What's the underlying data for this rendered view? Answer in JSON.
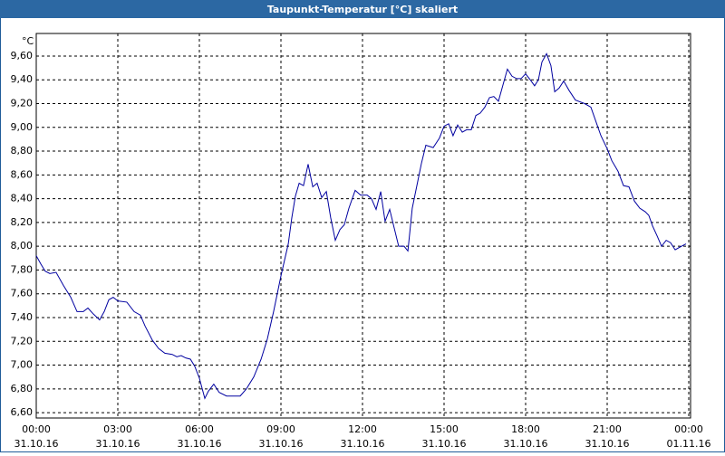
{
  "chart_data": {
    "type": "line",
    "title": "Taupunkt-Temperatur [°C] skaliert",
    "y_label": "°C",
    "x": [
      0,
      0.17,
      0.33,
      0.5,
      0.73,
      1,
      1.27,
      1.5,
      1.73,
      1.9,
      2.1,
      2.33,
      2.5,
      2.67,
      2.83,
      3,
      3.33,
      3.6,
      3.83,
      4,
      4.27,
      4.5,
      4.73,
      5,
      5.17,
      5.33,
      5.5,
      5.67,
      5.83,
      6,
      6.2,
      6.33,
      6.53,
      6.73,
      7,
      7.27,
      7.5,
      7.73,
      8,
      8.27,
      8.5,
      8.73,
      9,
      9.27,
      9.4,
      9.53,
      9.67,
      9.83,
      10,
      10.17,
      10.33,
      10.5,
      10.67,
      10.83,
      11,
      11.17,
      11.33,
      11.5,
      11.73,
      11.93,
      12.17,
      12.33,
      12.5,
      12.67,
      12.83,
      13,
      13.17,
      13.33,
      13.53,
      13.67,
      13.83,
      14,
      14.17,
      14.33,
      14.6,
      14.83,
      15,
      15.17,
      15.33,
      15.5,
      15.67,
      15.83,
      16,
      16.17,
      16.33,
      16.5,
      16.67,
      16.83,
      17,
      17.17,
      17.33,
      17.5,
      17.67,
      17.83,
      18,
      18.17,
      18.33,
      18.47,
      18.6,
      18.77,
      18.93,
      19.07,
      19.23,
      19.4,
      19.6,
      19.83,
      20.17,
      20.4,
      20.6,
      20.77,
      21,
      21.17,
      21.4,
      21.6,
      21.8,
      22,
      22.2,
      22.4,
      22.53,
      22.67,
      22.83,
      23,
      23.17,
      23.33,
      23.5,
      23.73,
      23.9
    ],
    "series": [
      {
        "name": "Taupunkt-Temperatur",
        "color": "#0000a0",
        "values": [
          7.92,
          7.85,
          7.79,
          7.77,
          7.78,
          7.67,
          7.57,
          7.45,
          7.45,
          7.48,
          7.43,
          7.38,
          7.45,
          7.55,
          7.57,
          7.54,
          7.53,
          7.45,
          7.42,
          7.33,
          7.21,
          7.14,
          7.1,
          7.09,
          7.07,
          7.08,
          7.06,
          7.05,
          6.99,
          6.89,
          6.72,
          6.78,
          6.84,
          6.77,
          6.74,
          6.74,
          6.74,
          6.8,
          6.9,
          7.05,
          7.22,
          7.45,
          7.75,
          8.02,
          8.24,
          8.42,
          8.53,
          8.51,
          8.69,
          8.5,
          8.53,
          8.41,
          8.46,
          8.24,
          8.05,
          8.14,
          8.18,
          8.32,
          8.47,
          8.43,
          8.43,
          8.4,
          8.31,
          8.46,
          8.21,
          8.31,
          8.15,
          8.0,
          8.0,
          7.96,
          8.32,
          8.51,
          8.7,
          8.85,
          8.83,
          8.91,
          9.01,
          9.03,
          8.93,
          9.02,
          8.96,
          8.98,
          8.98,
          9.1,
          9.12,
          9.17,
          9.25,
          9.26,
          9.22,
          9.36,
          9.49,
          9.43,
          9.41,
          9.41,
          9.45,
          9.4,
          9.35,
          9.4,
          9.55,
          9.62,
          9.52,
          9.3,
          9.33,
          9.39,
          9.31,
          9.23,
          9.2,
          9.17,
          9.04,
          8.93,
          8.82,
          8.72,
          8.63,
          8.51,
          8.5,
          8.38,
          8.32,
          8.29,
          8.26,
          8.17,
          8.09,
          8.0,
          8.05,
          8.03,
          7.97,
          8.0,
          8.02
        ]
      }
    ],
    "xlim": [
      0,
      24
    ],
    "xticks": [
      {
        "value": 0,
        "label": "00:00",
        "date": "31.10.16"
      },
      {
        "value": 3,
        "label": "03:00",
        "date": "31.10.16"
      },
      {
        "value": 6,
        "label": "06:00",
        "date": "31.10.16"
      },
      {
        "value": 9,
        "label": "09:00",
        "date": "31.10.16"
      },
      {
        "value": 12,
        "label": "12:00",
        "date": "31.10.16"
      },
      {
        "value": 15,
        "label": "15:00",
        "date": "31.10.16"
      },
      {
        "value": 18,
        "label": "18:00",
        "date": "31.10.16"
      },
      {
        "value": 21,
        "label": "21:00",
        "date": "31.10.16"
      },
      {
        "value": 24,
        "label": "00:00",
        "date": "01.11.16"
      }
    ],
    "ylim": [
      6.555,
      9.79
    ],
    "yticks": [
      {
        "value": 6.6,
        "label": "6,60"
      },
      {
        "value": 6.8,
        "label": "6,80"
      },
      {
        "value": 7.0,
        "label": "7,00"
      },
      {
        "value": 7.2,
        "label": "7,20"
      },
      {
        "value": 7.4,
        "label": "7,40"
      },
      {
        "value": 7.6,
        "label": "7,60"
      },
      {
        "value": 7.8,
        "label": "7,80"
      },
      {
        "value": 8.0,
        "label": "8,00"
      },
      {
        "value": 8.2,
        "label": "8,20"
      },
      {
        "value": 8.4,
        "label": "8,40"
      },
      {
        "value": 8.6,
        "label": "8,60"
      },
      {
        "value": 8.8,
        "label": "8,80"
      },
      {
        "value": 9.0,
        "label": "9,00"
      },
      {
        "value": 9.2,
        "label": "9,20"
      },
      {
        "value": 9.4,
        "label": "9,40"
      },
      {
        "value": 9.6,
        "label": "9,60"
      }
    ],
    "grid": true
  }
}
